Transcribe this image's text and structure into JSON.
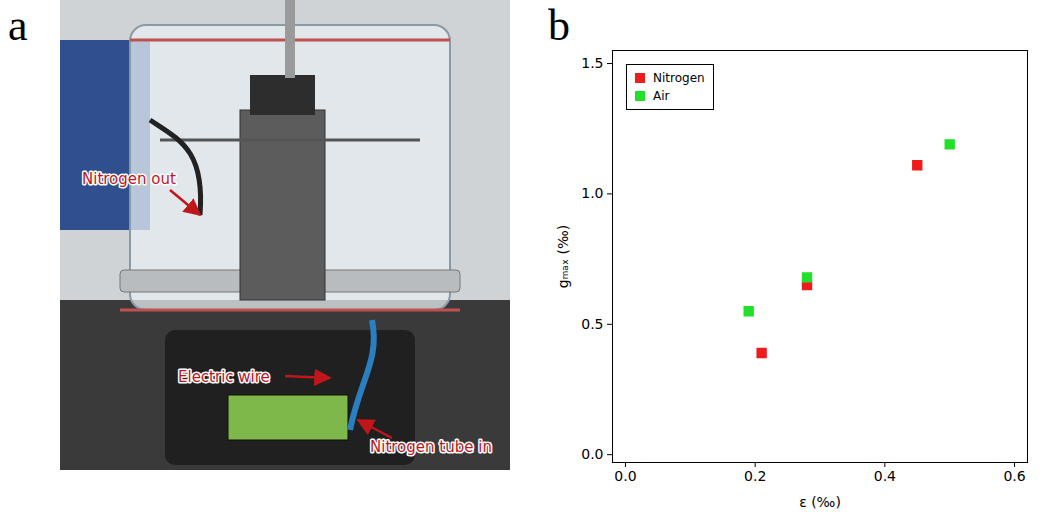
{
  "panel_labels": [
    "a",
    "b"
  ],
  "photo": {
    "annotations": [
      "Nitrogen out",
      "Electric wire",
      "Nitrogen tube in"
    ]
  },
  "chart_data": {
    "type": "scatter",
    "xlabel": "ε (‰)",
    "ylabel": "gₘₐₓ (‰)",
    "series": [
      {
        "name": "Nitrogen",
        "color": "#ee1c1c",
        "marker": "square",
        "x": [
          0.21,
          0.28,
          0.45
        ],
        "values": [
          0.39,
          0.65,
          1.11
        ]
      },
      {
        "name": "Air",
        "color": "#22e02a",
        "marker": "square",
        "x": [
          0.19,
          0.28,
          0.5
        ],
        "values": [
          0.55,
          0.68,
          1.19
        ]
      }
    ],
    "xlim": [
      -0.02,
      0.62
    ],
    "ylim": [
      -0.03,
      1.55
    ],
    "xticks": [
      {
        "value": 0,
        "label": "0.0"
      },
      {
        "value": 0.2,
        "label": "0.2"
      },
      {
        "value": 0.4,
        "label": "0.4"
      },
      {
        "value": 0.6,
        "label": "0.6"
      }
    ],
    "yticks": [
      {
        "value": 0,
        "label": "0.0"
      },
      {
        "value": 0.5,
        "label": "0.5"
      },
      {
        "value": 1,
        "label": "1.0"
      },
      {
        "value": 1.5,
        "label": "1.5"
      }
    ],
    "legend": "upper left",
    "grid": false
  }
}
